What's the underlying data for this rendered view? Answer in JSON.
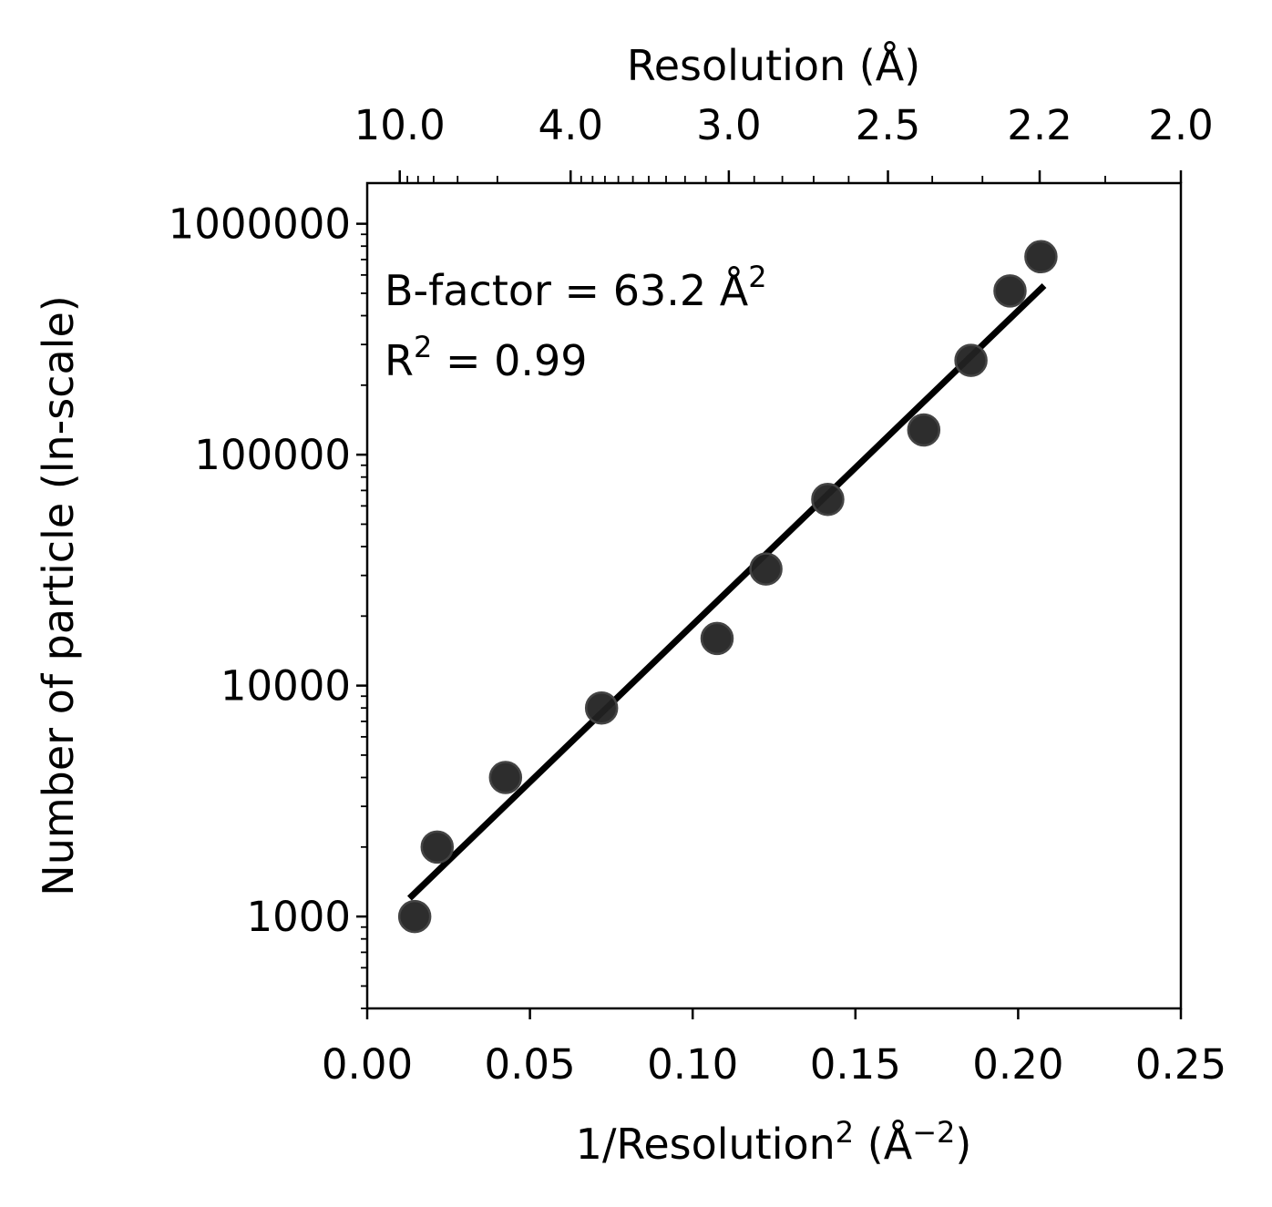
{
  "chart_data": {
    "type": "scatter",
    "xlabel": "1/Resolution",
    "xlabel_sup": "2",
    "xlabel_unit_open": " (Å",
    "xlabel_unit_sup": "−2",
    "xlabel_unit_close": ")",
    "ylabel": "Number of particle (ln-scale)",
    "top_xlabel": "Resolution (Å)",
    "xlim": [
      0.0,
      0.25
    ],
    "ylim": [
      400,
      1500000
    ],
    "yscale": "log",
    "x_ticks": [
      0.0,
      0.05,
      0.1,
      0.15,
      0.2,
      0.25
    ],
    "x_tick_labels": [
      "0.00",
      "0.05",
      "0.10",
      "0.15",
      "0.20",
      "0.25"
    ],
    "y_ticks": [
      1000,
      10000,
      100000,
      1000000
    ],
    "y_tick_labels": [
      "1000",
      "10000",
      "100000",
      "1000000"
    ],
    "top_ticks": [
      10.0,
      4.0,
      3.0,
      2.5,
      2.2,
      2.0
    ],
    "top_tick_labels": [
      "10.0",
      "4.0",
      "3.0",
      "2.5",
      "2.2",
      "2.0"
    ],
    "annotation_bfactor_text": "B-factor = 63.2 Å",
    "annotation_bfactor_sup": "2",
    "annotation_r2_r": "R",
    "annotation_r2_sup": "2",
    "annotation_r2_rest": " = 0.99",
    "grid": false,
    "points": {
      "x": [
        0.0146,
        0.0215,
        0.0425,
        0.072,
        0.1075,
        0.1225,
        0.1415,
        0.171,
        0.1855,
        0.1975,
        0.207
      ],
      "y": [
        1000,
        2000,
        4000,
        8000,
        16000,
        32000,
        64000,
        128000,
        256000,
        512000,
        720000
      ]
    },
    "fit_line": {
      "x": [
        0.013,
        0.208
      ],
      "y": [
        1200,
        540000
      ]
    },
    "colors": {
      "points": "#222222",
      "line": "#000000"
    }
  }
}
